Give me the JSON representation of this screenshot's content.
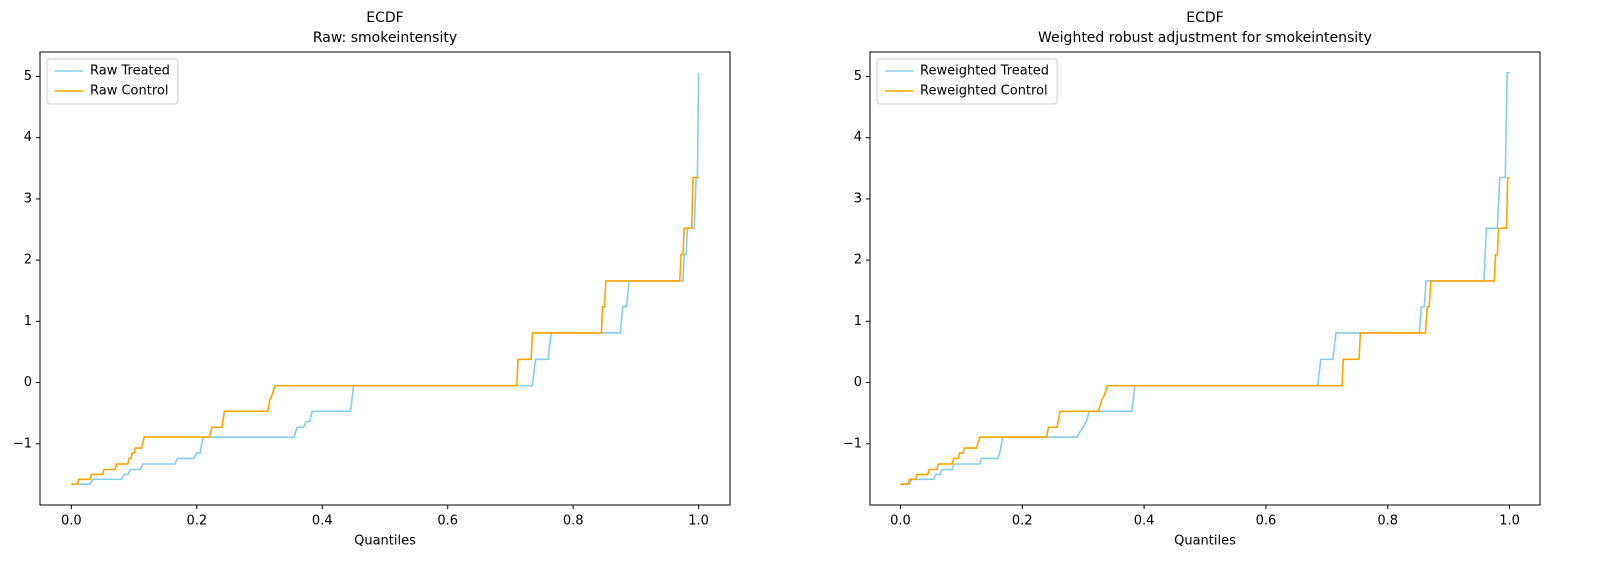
{
  "chart_data": [
    {
      "type": "line",
      "title": "ECDF",
      "subtitle": "Raw: smokeintensity",
      "xlabel": "Quantiles",
      "xlim": [
        -0.05,
        1.05
      ],
      "ylim": [
        -2.0,
        5.4
      ],
      "xticks": [
        {
          "value": 0,
          "label": "0.0"
        },
        {
          "value": 0.2,
          "label": "0.2"
        },
        {
          "value": 0.4,
          "label": "0.4"
        },
        {
          "value": 0.6,
          "label": "0.6"
        },
        {
          "value": 0.8,
          "label": "0.8"
        },
        {
          "value": 1,
          "label": "1.0"
        }
      ],
      "yticks": [
        {
          "value": -1,
          "label": "−1"
        },
        0,
        1,
        2,
        3,
        4,
        5
      ],
      "legend": "upper left",
      "series": [
        {
          "name": "Raw Treated",
          "color": "#87ceeb",
          "x": [
            0,
            0.03,
            0.034,
            0.08,
            0.084,
            0.09,
            0.094,
            0.11,
            0.114,
            0.165,
            0.169,
            0.195,
            0.2,
            0.205,
            0.21,
            0.355,
            0.36,
            0.37,
            0.374,
            0.38,
            0.384,
            0.445,
            0.45,
            0.735,
            0.74,
            0.76,
            0.765,
            0.875,
            0.879,
            0.885,
            0.889,
            0.975,
            0.977,
            0.98,
            0.982,
            0.993,
            0.996,
            0.998,
            1.0
          ],
          "values": [
            -1.66,
            -1.66,
            -1.58,
            -1.58,
            -1.5,
            -1.5,
            -1.42,
            -1.42,
            -1.33,
            -1.33,
            -1.24,
            -1.24,
            -1.15,
            -1.15,
            -0.89,
            -0.89,
            -0.73,
            -0.73,
            -0.64,
            -0.64,
            -0.47,
            -0.47,
            -0.05,
            -0.05,
            0.38,
            0.38,
            0.81,
            0.81,
            1.24,
            1.24,
            1.66,
            1.66,
            2.09,
            2.09,
            2.52,
            2.52,
            3.35,
            3.35,
            5.06
          ]
        },
        {
          "name": "Raw Control",
          "color": "#ffa500",
          "x": [
            0,
            0.01,
            0.012,
            0.03,
            0.032,
            0.05,
            0.052,
            0.07,
            0.072,
            0.09,
            0.092,
            0.095,
            0.097,
            0.1,
            0.102,
            0.112,
            0.116,
            0.22,
            0.224,
            0.24,
            0.244,
            0.313,
            0.316,
            0.32,
            0.325,
            0.71,
            0.712,
            0.733,
            0.735,
            0.845,
            0.847,
            0.85,
            0.852,
            0.97,
            0.972,
            0.975,
            0.977,
            0.989,
            0.991,
            1.0
          ],
          "values": [
            -1.66,
            -1.66,
            -1.58,
            -1.58,
            -1.5,
            -1.5,
            -1.42,
            -1.42,
            -1.33,
            -1.33,
            -1.24,
            -1.24,
            -1.15,
            -1.15,
            -1.07,
            -1.07,
            -0.89,
            -0.89,
            -0.73,
            -0.73,
            -0.47,
            -0.47,
            -0.3,
            -0.2,
            -0.05,
            -0.05,
            0.38,
            0.38,
            0.81,
            0.81,
            1.24,
            1.24,
            1.66,
            1.66,
            2.09,
            2.09,
            2.52,
            2.52,
            3.35,
            3.35
          ]
        }
      ]
    },
    {
      "type": "line",
      "title": "ECDF",
      "subtitle": "Weighted robust adjustment for smokeintensity",
      "xlabel": "Quantiles",
      "xlim": [
        -0.05,
        1.05
      ],
      "ylim": [
        -2.0,
        5.4
      ],
      "xticks": [
        {
          "value": 0,
          "label": "0.0"
        },
        {
          "value": 0.2,
          "label": "0.2"
        },
        {
          "value": 0.4,
          "label": "0.4"
        },
        {
          "value": 0.6,
          "label": "0.6"
        },
        {
          "value": 0.8,
          "label": "0.8"
        },
        {
          "value": 1,
          "label": "1.0"
        }
      ],
      "yticks": [
        {
          "value": -1,
          "label": "−1"
        },
        0,
        1,
        2,
        3,
        4,
        5
      ],
      "legend": "upper left",
      "series": [
        {
          "name": "Reweighted Treated",
          "color": "#87ceeb",
          "x": [
            0,
            0.015,
            0.018,
            0.055,
            0.058,
            0.065,
            0.068,
            0.085,
            0.088,
            0.13,
            0.133,
            0.16,
            0.163,
            0.168,
            0.29,
            0.295,
            0.3,
            0.305,
            0.31,
            0.38,
            0.385,
            0.685,
            0.69,
            0.71,
            0.715,
            0.852,
            0.855,
            0.86,
            0.863,
            0.958,
            0.962,
            0.98,
            0.984,
            0.993,
            0.996,
            1.0
          ],
          "values": [
            -1.66,
            -1.66,
            -1.58,
            -1.58,
            -1.5,
            -1.5,
            -1.42,
            -1.42,
            -1.33,
            -1.33,
            -1.24,
            -1.24,
            -1.15,
            -0.89,
            -0.89,
            -0.8,
            -0.73,
            -0.64,
            -0.47,
            -0.47,
            -0.05,
            -0.05,
            0.38,
            0.38,
            0.81,
            0.81,
            1.24,
            1.24,
            1.66,
            1.66,
            2.52,
            2.52,
            3.35,
            3.35,
            5.06,
            5.06
          ]
        },
        {
          "name": "Reweighted Control",
          "color": "#ffa500",
          "x": [
            0,
            0.012,
            0.015,
            0.025,
            0.027,
            0.045,
            0.047,
            0.06,
            0.062,
            0.085,
            0.087,
            0.095,
            0.097,
            0.103,
            0.105,
            0.125,
            0.13,
            0.24,
            0.243,
            0.257,
            0.262,
            0.325,
            0.33,
            0.335,
            0.34,
            0.725,
            0.727,
            0.753,
            0.755,
            0.862,
            0.865,
            0.868,
            0.871,
            0.975,
            0.977,
            0.98,
            0.982,
            0.995,
            0.997,
            1.0
          ],
          "values": [
            -1.66,
            -1.66,
            -1.58,
            -1.58,
            -1.5,
            -1.5,
            -1.42,
            -1.42,
            -1.33,
            -1.33,
            -1.24,
            -1.24,
            -1.15,
            -1.15,
            -1.07,
            -1.07,
            -0.89,
            -0.89,
            -0.73,
            -0.73,
            -0.47,
            -0.47,
            -0.3,
            -0.2,
            -0.05,
            -0.05,
            0.38,
            0.38,
            0.81,
            0.81,
            1.24,
            1.24,
            1.66,
            1.66,
            2.09,
            2.09,
            2.52,
            2.52,
            3.35,
            3.35
          ]
        }
      ]
    }
  ]
}
